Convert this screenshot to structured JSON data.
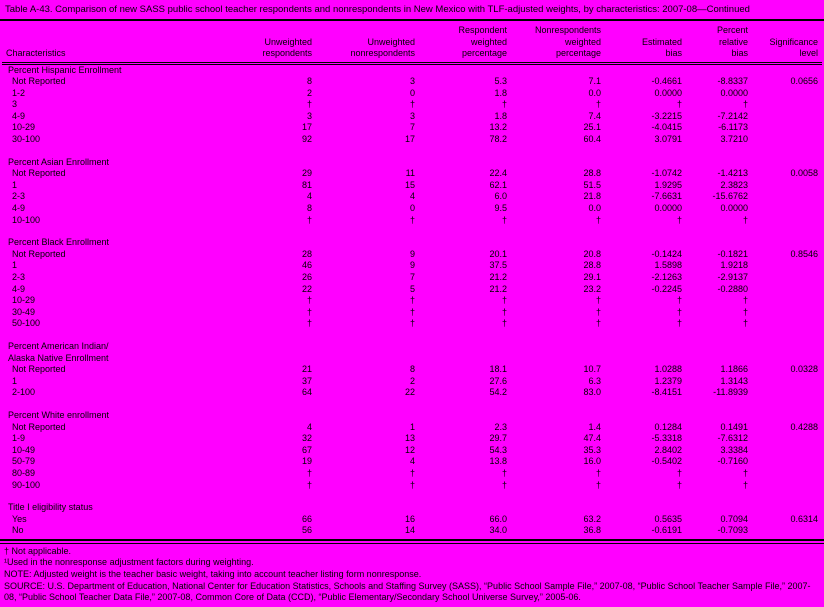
{
  "title": "Table A-43. Comparison of new SASS public school teacher respondents and nonrespondents in New Mexico with TLF-adjusted weights, by characteristics: 2007-08—Continued",
  "colors": {
    "background": "#ff00ff",
    "text": "#000000"
  },
  "table": {
    "columns": [
      "Characteristics",
      "Unweighted\nrespondents",
      "Unweighted\nnonrespondents",
      "Respondent\nweighted\npercentage",
      "Nonrespondents\nweighted\npercentage",
      "Estimated\nbias",
      "Percent\nrelative\nbias",
      "Significance\nlevel"
    ],
    "not_applicable_symbol": "†",
    "sections": [
      {
        "label": "Percent Hispanic Enrollment",
        "rows": [
          {
            "label": "Not Reported",
            "values": [
              "8",
              "3",
              "5.3",
              "7.1",
              "-0.4661",
              "-8.8337",
              "0.0656"
            ]
          },
          {
            "label": "1-2",
            "values": [
              "2",
              "0",
              "1.8",
              "0.0",
              "0.0000",
              "0.0000",
              ""
            ]
          },
          {
            "label": "3",
            "values": [
              "†",
              "†",
              "†",
              "†",
              "†",
              "†",
              ""
            ]
          },
          {
            "label": "4-9",
            "values": [
              "3",
              "3",
              "1.8",
              "7.4",
              "-3.2215",
              "-7.2142",
              ""
            ]
          },
          {
            "label": "10-29",
            "values": [
              "17",
              "7",
              "13.2",
              "25.1",
              "-4.0415",
              "-6.1173",
              ""
            ]
          },
          {
            "label": "30-100",
            "values": [
              "92",
              "17",
              "78.2",
              "60.4",
              "3.0791",
              "3.7210",
              ""
            ]
          }
        ]
      },
      {
        "label": "Percent Asian Enrollment",
        "rows": [
          {
            "label": "Not Reported",
            "values": [
              "29",
              "11",
              "22.4",
              "28.8",
              "-1.0742",
              "-1.4213",
              "0.0058"
            ]
          },
          {
            "label": "1",
            "values": [
              "81",
              "15",
              "62.1",
              "51.5",
              "1.9295",
              "2.3823",
              ""
            ]
          },
          {
            "label": "2-3",
            "values": [
              "4",
              "4",
              "6.0",
              "21.8",
              "-7.6631",
              "-15.6762",
              ""
            ]
          },
          {
            "label": "4-9",
            "values": [
              "8",
              "0",
              "9.5",
              "0.0",
              "0.0000",
              "0.0000",
              ""
            ]
          },
          {
            "label": "10-100",
            "values": [
              "†",
              "†",
              "†",
              "†",
              "†",
              "†",
              ""
            ]
          }
        ]
      },
      {
        "label": "Percent Black Enrollment",
        "rows": [
          {
            "label": "Not Reported",
            "values": [
              "28",
              "9",
              "20.1",
              "20.8",
              "-0.1424",
              "-0.1821",
              "0.8546"
            ]
          },
          {
            "label": "1",
            "values": [
              "46",
              "9",
              "37.5",
              "28.8",
              "1.5898",
              "1.9218",
              ""
            ]
          },
          {
            "label": "2-3",
            "values": [
              "26",
              "7",
              "21.2",
              "29.1",
              "-2.1263",
              "-2.9137",
              ""
            ]
          },
          {
            "label": "4-9",
            "values": [
              "22",
              "5",
              "21.2",
              "23.2",
              "-0.2245",
              "-0.2880",
              ""
            ]
          },
          {
            "label": "10-29",
            "values": [
              "†",
              "†",
              "†",
              "†",
              "†",
              "†",
              ""
            ]
          },
          {
            "label": "30-49",
            "values": [
              "†",
              "†",
              "†",
              "†",
              "†",
              "†",
              ""
            ]
          },
          {
            "label": "50-100",
            "values": [
              "†",
              "†",
              "†",
              "†",
              "†",
              "†",
              ""
            ]
          }
        ]
      },
      {
        "label": "Percent American Indian/\nAlaska Native Enrollment",
        "rows": [
          {
            "label": "Not Reported",
            "values": [
              "21",
              "8",
              "18.1",
              "10.7",
              "1.0288",
              "1.1866",
              "0.0328"
            ]
          },
          {
            "label": "1",
            "values": [
              "37",
              "2",
              "27.6",
              "6.3",
              "1.2379",
              "1.3143",
              ""
            ]
          },
          {
            "label": "2-100",
            "values": [
              "64",
              "22",
              "54.2",
              "83.0",
              "-8.4151",
              "-11.8939",
              ""
            ]
          }
        ]
      },
      {
        "label": "Percent White enrollment",
        "rows": [
          {
            "label": "Not Reported",
            "values": [
              "4",
              "1",
              "2.3",
              "1.4",
              "0.1284",
              "0.1491",
              "0.4288"
            ]
          },
          {
            "label": "1-9",
            "values": [
              "32",
              "13",
              "29.7",
              "47.4",
              "-5.3318",
              "-7.6312",
              ""
            ]
          },
          {
            "label": "10-49",
            "values": [
              "67",
              "12",
              "54.3",
              "35.3",
              "2.8402",
              "3.3384",
              ""
            ]
          },
          {
            "label": "50-79",
            "values": [
              "19",
              "4",
              "13.8",
              "16.0",
              "-0.5402",
              "-0.7160",
              ""
            ]
          },
          {
            "label": "80-89",
            "values": [
              "†",
              "†",
              "†",
              "†",
              "†",
              "†",
              ""
            ]
          },
          {
            "label": "90-100",
            "values": [
              "†",
              "†",
              "†",
              "†",
              "†",
              "†",
              ""
            ]
          }
        ]
      },
      {
        "label": "Title I eligibility status",
        "rows": [
          {
            "label": "Yes",
            "values": [
              "66",
              "16",
              "66.0",
              "63.2",
              "0.5635",
              "0.7094",
              "0.6314"
            ]
          },
          {
            "label": "No",
            "values": [
              "56",
              "14",
              "34.0",
              "36.8",
              "-0.6191",
              "-0.7093",
              ""
            ]
          }
        ]
      }
    ]
  },
  "footnotes": [
    "† Not applicable.",
    "¹Used in the nonresponse adjustment factors during weighting.",
    "NOTE: Adjusted weight is the teacher basic weight, taking into account teacher listing form nonresponse.",
    "SOURCE: U.S. Department of Education, National Center for Education Statistics, Schools and Staffing Survey (SASS), “Public School Sample File,” 2007-08, “Public School Teacher Sample File,” 2007-08, “Public School Teacher Data File,” 2007-08, Common Core of Data (CCD), “Public Elementary/Secondary School Universe Survey,” 2005-06."
  ]
}
